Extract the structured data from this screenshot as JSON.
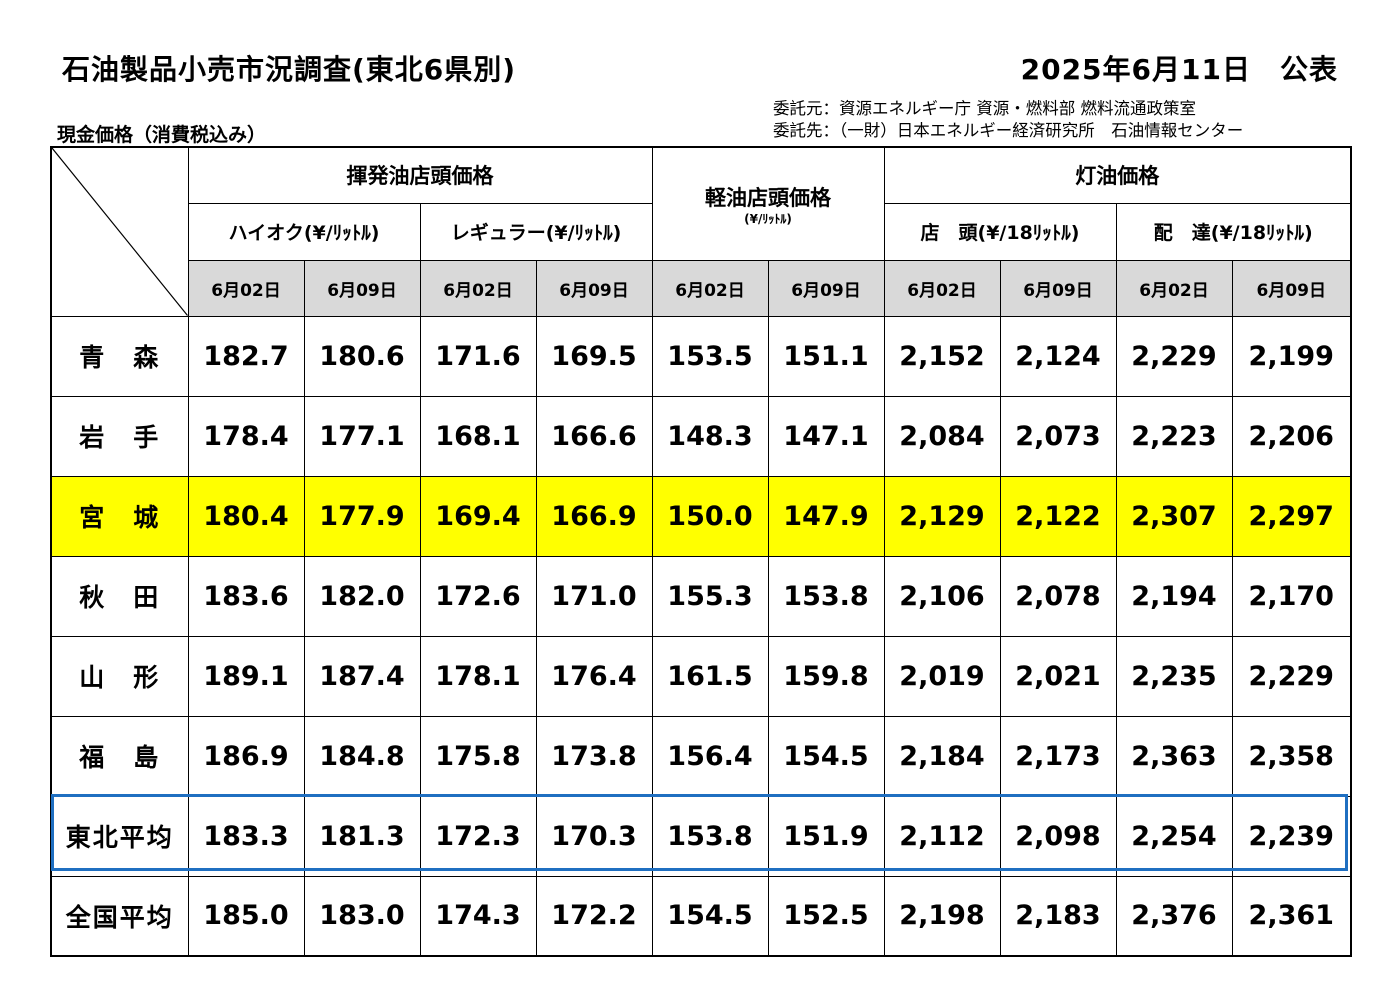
{
  "header": {
    "title": "石油製品小売市況調査(東北6県別)",
    "date": "2025年6月11日　公表",
    "subtitle": "現金価格（消費税込み）",
    "commission_from": "委託元：資源エネルギー庁 資源・燃料部 燃料流通政策室",
    "commission_to": "委託先：（一財）日本エネルギー経済研究所　石油情報センター"
  },
  "columns": {
    "gasoline": "揮発油店頭価格",
    "high_octane": "ハイオク(¥/ﾘｯﾄﾙ)",
    "regular": "レギュラー(¥/ﾘｯﾄﾙ)",
    "diesel": "軽油店頭価格",
    "diesel_unit": "(¥/ﾘｯﾄﾙ)",
    "kerosene": "灯油価格",
    "kerosene_store": "店　頭(¥/18ﾘｯﾄﾙ)",
    "kerosene_delivery": "配　達(¥/18ﾘｯﾄﾙ)",
    "dates": [
      "6月02日",
      "6月09日",
      "6月02日",
      "6月09日",
      "6月02日",
      "6月09日",
      "6月02日",
      "6月09日",
      "6月02日",
      "6月09日"
    ]
  },
  "rows": [
    {
      "label": "青　森",
      "values": [
        "182.7",
        "180.6",
        "171.6",
        "169.5",
        "153.5",
        "151.1",
        "2,152",
        "2,124",
        "2,229",
        "2,199"
      ]
    },
    {
      "label": "岩　手",
      "values": [
        "178.4",
        "177.1",
        "168.1",
        "166.6",
        "148.3",
        "147.1",
        "2,084",
        "2,073",
        "2,223",
        "2,206"
      ]
    },
    {
      "label": "宮　城",
      "values": [
        "180.4",
        "177.9",
        "169.4",
        "166.9",
        "150.0",
        "147.9",
        "2,129",
        "2,122",
        "2,307",
        "2,297"
      ]
    },
    {
      "label": "秋　田",
      "values": [
        "183.6",
        "182.0",
        "172.6",
        "171.0",
        "155.3",
        "153.8",
        "2,106",
        "2,078",
        "2,194",
        "2,170"
      ]
    },
    {
      "label": "山　形",
      "values": [
        "189.1",
        "187.4",
        "178.1",
        "176.4",
        "161.5",
        "159.8",
        "2,019",
        "2,021",
        "2,235",
        "2,229"
      ]
    },
    {
      "label": "福　島",
      "values": [
        "186.9",
        "184.8",
        "175.8",
        "173.8",
        "156.4",
        "154.5",
        "2,184",
        "2,173",
        "2,363",
        "2,358"
      ]
    },
    {
      "label": "東北平均",
      "values": [
        "183.3",
        "181.3",
        "172.3",
        "170.3",
        "153.8",
        "151.9",
        "2,112",
        "2,098",
        "2,254",
        "2,239"
      ]
    },
    {
      "label": "全国平均",
      "values": [
        "185.0",
        "183.0",
        "174.3",
        "172.2",
        "154.5",
        "152.5",
        "2,198",
        "2,183",
        "2,376",
        "2,361"
      ]
    }
  ],
  "colors": {
    "highlight_row": "#ffff00",
    "tohoku_border": "#1f6fc1",
    "date_header_bg": "#d9d9d9"
  }
}
